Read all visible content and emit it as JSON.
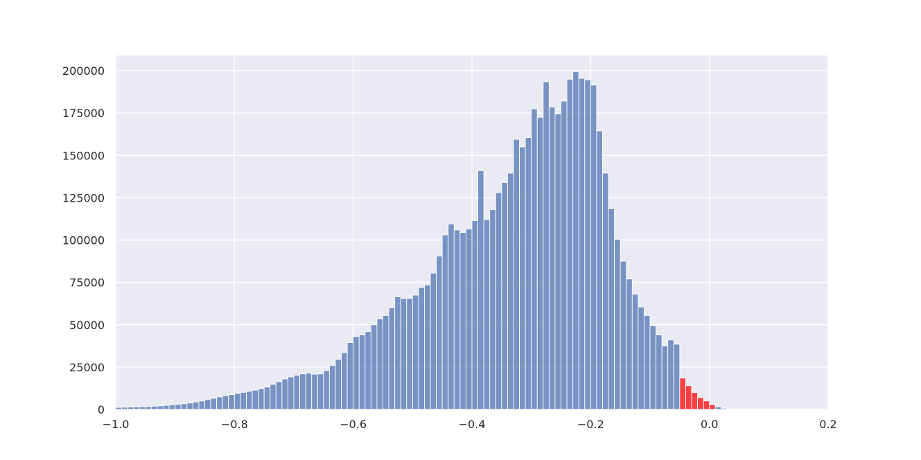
{
  "chart_data": {
    "type": "bar",
    "title": "",
    "xlabel": "",
    "ylabel": "",
    "xlim": [
      -1.0,
      0.2
    ],
    "ylim": [
      0,
      209000
    ],
    "grid": true,
    "legend": "none",
    "x_ticks": [
      -1.0,
      -0.8,
      -0.6,
      -0.4,
      -0.2,
      0.0,
      0.2
    ],
    "x_tick_labels": [
      "−1.0",
      "−0.8",
      "−0.6",
      "−0.4",
      "−0.2",
      "0.0",
      "0.2"
    ],
    "y_ticks": [
      0,
      25000,
      50000,
      75000,
      100000,
      125000,
      150000,
      175000,
      200000
    ],
    "y_tick_labels": [
      "0",
      "25000",
      "50000",
      "75000",
      "100000",
      "125000",
      "150000",
      "175000",
      "200000"
    ],
    "colors": {
      "background": "#eaeaf2",
      "grid": "#ffffff",
      "bar": "#4c72b0",
      "highlight": "#ff0000"
    },
    "bin_start": -1.0,
    "bin_width": 0.01,
    "highlight_bins": [
      95,
      96,
      97,
      98,
      99,
      100
    ],
    "values": [
      1200,
      1300,
      1400,
      1500,
      1600,
      1700,
      1900,
      2100,
      2400,
      2700,
      3000,
      3400,
      3800,
      4400,
      5000,
      5800,
      6600,
      7400,
      8100,
      8800,
      9400,
      10100,
      10700,
      11400,
      12300,
      13200,
      14800,
      16400,
      18000,
      19200,
      20200,
      21000,
      21400,
      20800,
      21000,
      23000,
      26000,
      29500,
      33500,
      39500,
      43000,
      44000,
      46000,
      50000,
      53500,
      55500,
      60000,
      66500,
      65500,
      65500,
      67500,
      72000,
      73500,
      80500,
      90500,
      103000,
      109500,
      106000,
      104500,
      106500,
      111500,
      141000,
      112000,
      118000,
      128000,
      134000,
      139500,
      159500,
      155000,
      160500,
      177500,
      172500,
      193500,
      178500,
      174500,
      182000,
      195000,
      199500,
      195500,
      194500,
      191500,
      164500,
      139500,
      118500,
      100500,
      87500,
      77000,
      68000,
      60500,
      55500,
      49500,
      44000,
      37500,
      41000,
      38500,
      18500,
      14000,
      10000,
      7000,
      5000,
      2800,
      1500,
      700,
      300,
      100
    ]
  }
}
